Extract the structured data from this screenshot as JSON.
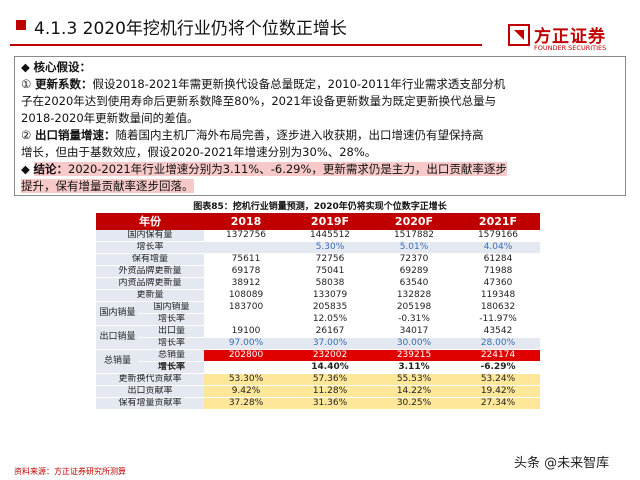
{
  "header": {
    "title": "4.1.3 2020年挖机行业仍将个位数正增长",
    "logo_cn": "方正证券",
    "logo_en": "FOUNDER SECURITIES"
  },
  "assumptions": {
    "heading": "核心假设：",
    "bullet1": "◆",
    "num1": "①",
    "label1": "更新系数：",
    "text1a": "假设2018-2021年需更新换代设备总量既定，2010-2011年行业需求透支部分机",
    "text1b": "子在2020年达到使用寿命后更新系数降至80%，2021年设备更新数量为既定更新换代总量与",
    "text1c": "2018-2020年更新数量间的差值。",
    "num2": "②",
    "label2": "出口销量增速：",
    "text2a": "随着国内主机厂海外布局完善，逐步进入收获期，出口增速仍有望保持高",
    "text2b": "增长，但由于基数效应，假设2020-2021年增速分别为30%、28%。",
    "bullet3": "◆",
    "label3": "结论：",
    "text3a": "2020-2021年行业增速分别为3.11%、-6.29%，更新需求仍是主力，出口贡献率逐步",
    "text3b": "提升，保有增量贡献率逐步回落。"
  },
  "table": {
    "title": "图表85：挖机行业销量预测，2020年仍将实现个位数字正增长",
    "headers": [
      "年份",
      "2018",
      "2019F",
      "2020F",
      "2021F"
    ],
    "rows": {
      "r0": {
        "label": "国内保有量",
        "v": [
          "1372756",
          "1445512",
          "1517882",
          "1579166"
        ]
      },
      "r1": {
        "label": "增长率",
        "v": [
          "",
          "5.30%",
          "5.01%",
          "4.04%"
        ]
      },
      "r2": {
        "label": "保有增量",
        "v": [
          "75611",
          "72756",
          "72370",
          "61284"
        ]
      },
      "r3": {
        "label": "外资品牌更新量",
        "v": [
          "69178",
          "75041",
          "69289",
          "71988"
        ]
      },
      "r4": {
        "label": "内资品牌更新量",
        "v": [
          "38912",
          "58038",
          "63540",
          "47360"
        ]
      },
      "r5": {
        "label": "更新量",
        "v": [
          "108089",
          "133079",
          "132828",
          "119348"
        ]
      },
      "group_domestic": "国内销量",
      "r6": {
        "label": "国内销量",
        "v": [
          "183700",
          "205835",
          "205198",
          "180632"
        ]
      },
      "r7": {
        "label": "增长率",
        "v": [
          "",
          "12.05%",
          "-0.31%",
          "-11.97%"
        ]
      },
      "group_export": "出口销量",
      "r8": {
        "label": "出口量",
        "v": [
          "19100",
          "26167",
          "34017",
          "43542"
        ]
      },
      "r9": {
        "label": "增长率",
        "v": [
          "97.00%",
          "37.00%",
          "30.00%",
          "28.00%"
        ]
      },
      "group_total": "总销量",
      "r10": {
        "label": "总销量",
        "v": [
          "202800",
          "232002",
          "239215",
          "224174"
        ]
      },
      "r11": {
        "label": "增长率",
        "v": [
          "",
          "14.40%",
          "3.11%",
          "-6.29%"
        ]
      },
      "r12": {
        "label": "更新换代贡献率",
        "v": [
          "53.30%",
          "57.36%",
          "55.53%",
          "53.24%"
        ]
      },
      "r13": {
        "label": "出口贡献率",
        "v": [
          "9.42%",
          "11.28%",
          "14.22%",
          "19.42%"
        ]
      },
      "r14": {
        "label": "保有增量贡献率",
        "v": [
          "37.28%",
          "31.36%",
          "30.25%",
          "27.34%"
        ]
      }
    }
  },
  "footer": {
    "source": "资料来源：方正证券研究所测算",
    "watermark": "头条 @未来智库"
  },
  "colors": {
    "brand_red": "#c00000",
    "highlight_pink": "#f7c9c9",
    "table_red": "#e00000",
    "light_blue": "#e4e8f1",
    "yellow": "#ffe79a",
    "blue_text": "#3b6fb5"
  }
}
